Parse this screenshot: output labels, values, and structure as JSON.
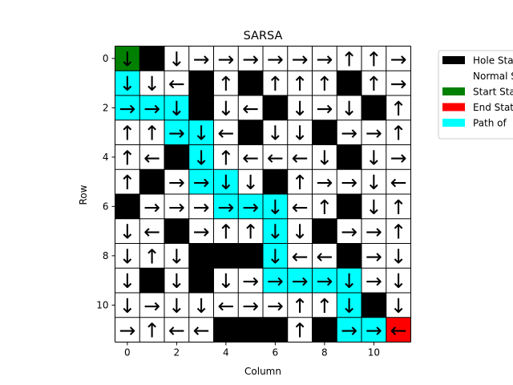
{
  "chart_data": {
    "type": "heatmap",
    "title": "SARSA",
    "xlabel": "Column",
    "ylabel": "Row",
    "rows": 12,
    "cols": 12,
    "xticks": [
      0,
      2,
      4,
      6,
      8,
      10
    ],
    "yticks": [
      0,
      2,
      4,
      6,
      8,
      10
    ],
    "legend_placement": "outside-top-right",
    "legend": [
      {
        "label": "Hole State",
        "color": "#000000"
      },
      {
        "label": "Normal State",
        "color": "#ffffff"
      },
      {
        "label": "Start State",
        "color": "#008000"
      },
      {
        "label": "End State",
        "color": "#ff0000"
      },
      {
        "label": "Path of",
        "color": "#00ffff"
      }
    ],
    "state_colors": {
      "H": "#000000",
      "N": "#ffffff",
      "S": "#008000",
      "E": "#ff0000",
      "P": "#00ffff"
    },
    "arrow_glyphs": {
      "U": "↑",
      "D": "↓",
      "L": "←",
      "R": "→"
    },
    "grid_states": [
      "SHNNNNNNNNNN",
      "PNNHNHNNNHNN",
      "PPPHNNHNNNHN",
      "NNPPNHNNHNNN",
      "NNHPNNNNNHNN",
      "NHNPPNHNNNNN",
      "HNNNPPPNNHNN",
      "NNHNNNPNHNNN",
      "NNNHHHPNNHNN",
      "NHNHNNPPPPNN",
      "NNNNNNNNNPHN",
      "NNNNHHHNHPPE"
    ],
    "policy_arrows": [
      "D.DRRRRRRUUR",
      "DDL.U.UUU.UR",
      "RRD.DL.DRD.U",
      "UURDL.DD.RRU",
      "UL.DULLLD.DR",
      "U.RRDD.URRDL",
      ".RRRRRDLU.DU",
      "DL.RUUDD.RRU",
      "DUD...DLL.RD",
      "D.D.DRRRRDRD",
      "DRDDLRRUUD.D",
      "RULL...U.RRL"
    ]
  }
}
